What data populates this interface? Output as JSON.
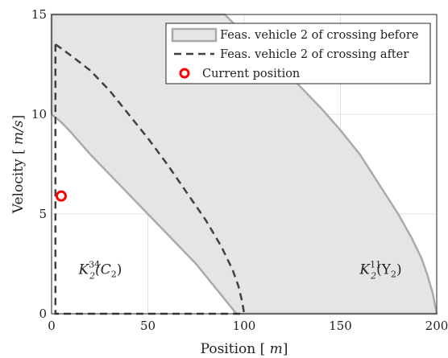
{
  "chart_data": {
    "type": "area",
    "title": "",
    "xlabel": "Position [m]",
    "ylabel": "Velocity [m/s]",
    "xlim": [
      0,
      200
    ],
    "ylim": [
      0,
      15
    ],
    "xticks": [
      "0",
      "50",
      "100",
      "150",
      "200"
    ],
    "yticks": [
      "0",
      "5",
      "10",
      "15"
    ],
    "grid": true,
    "legend_position": "top-right",
    "series": [
      {
        "name": "Feas. vehicle 2 of crossing before",
        "kind": "filled-region",
        "color": "#aaaaaa",
        "fill": "#e5e5e5",
        "outline": [
          [
            0,
            15
          ],
          [
            90,
            15
          ],
          [
            100,
            14
          ],
          [
            110,
            13.2
          ],
          [
            120,
            12.3
          ],
          [
            130,
            11.3
          ],
          [
            140,
            10.3
          ],
          [
            150,
            9.2
          ],
          [
            160,
            8.0
          ],
          [
            170,
            6.5
          ],
          [
            180,
            5.0
          ],
          [
            187,
            3.8
          ],
          [
            192,
            2.8
          ],
          [
            195,
            2.0
          ],
          [
            198,
            1.0
          ],
          [
            200,
            0
          ],
          [
            96,
            0
          ],
          [
            75,
            2.5
          ],
          [
            60,
            4.0
          ],
          [
            45,
            5.5
          ],
          [
            30,
            7.0
          ],
          [
            20,
            8.0
          ],
          [
            10,
            9.1
          ],
          [
            5,
            9.6
          ],
          [
            0,
            10
          ]
        ]
      },
      {
        "name": "Feas. vehicle 2 of crossing after",
        "kind": "dashed-line",
        "color": "#404040",
        "points": [
          [
            2,
            13.5
          ],
          [
            5,
            13.3
          ],
          [
            12,
            12.8
          ],
          [
            20,
            12.2
          ],
          [
            30,
            11.2
          ],
          [
            40,
            10.0
          ],
          [
            50,
            8.8
          ],
          [
            60,
            7.5
          ],
          [
            70,
            6.1
          ],
          [
            80,
            4.7
          ],
          [
            88,
            3.4
          ],
          [
            94,
            2.2
          ],
          [
            97,
            1.4
          ],
          [
            99,
            0.6
          ],
          [
            100,
            0
          ]
        ],
        "boundary": [
          [
            2,
            13.5
          ],
          [
            2,
            0
          ],
          [
            100,
            0
          ]
        ]
      },
      {
        "name": "Current position",
        "kind": "marker",
        "color": "#ff0000",
        "points": [
          [
            5,
            5.9
          ]
        ]
      }
    ],
    "annotations": [
      {
        "text_main": "K",
        "sup": "34",
        "sub": "2",
        "arg": "(C",
        "arg_sub": "2",
        "arg_end": ")",
        "x": 14,
        "y": 2
      },
      {
        "text_main": "K",
        "sup": "11",
        "sub": "2",
        "arg": "(Υ",
        "arg_sub": "2",
        "arg_end": ")",
        "x": 160,
        "y": 2
      }
    ]
  }
}
